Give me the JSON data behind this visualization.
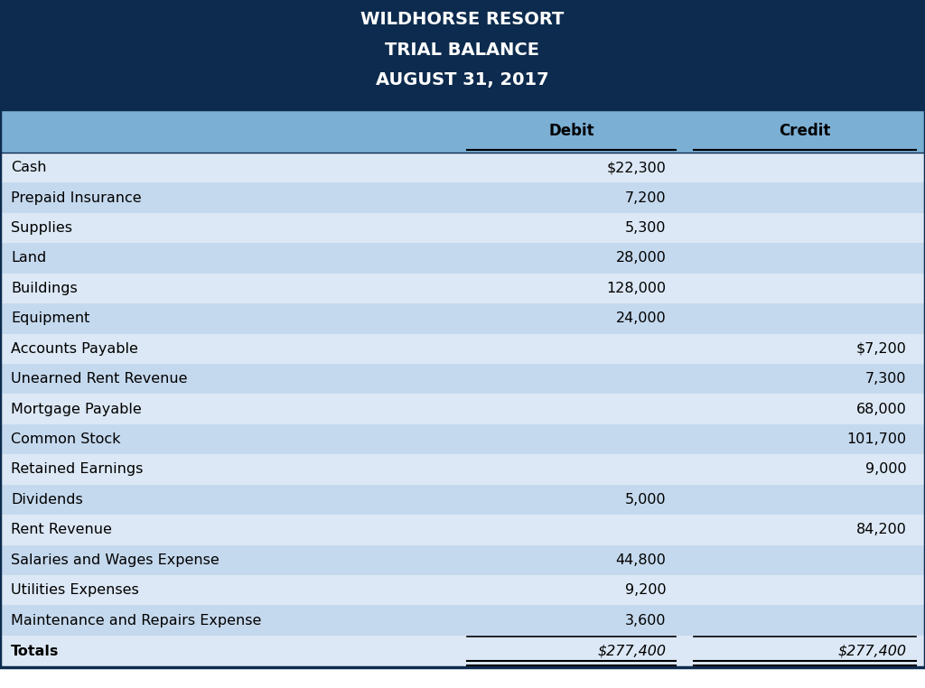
{
  "title_lines": [
    "WILDHORSE RESORT",
    "TRIAL BALANCE",
    "AUGUST 31, 2017"
  ],
  "header_bg": "#0d2b4e",
  "header_text_color": "#ffffff",
  "subheader_bg": "#7bafd4",
  "col_header_text": [
    "Debit",
    "Credit"
  ],
  "row_bg_light": "#dce8f5",
  "row_bg_dark": "#c5d9ee",
  "rows": [
    {
      "label": "Cash",
      "debit": "$22,300",
      "credit": ""
    },
    {
      "label": "Prepaid Insurance",
      "debit": "7,200",
      "credit": ""
    },
    {
      "label": "Supplies",
      "debit": "5,300",
      "credit": ""
    },
    {
      "label": "Land",
      "debit": "28,000",
      "credit": ""
    },
    {
      "label": "Buildings",
      "debit": "128,000",
      "credit": ""
    },
    {
      "label": "Equipment",
      "debit": "24,000",
      "credit": ""
    },
    {
      "label": "Accounts Payable",
      "debit": "",
      "credit": "$7,200"
    },
    {
      "label": "Unearned Rent Revenue",
      "debit": "",
      "credit": "7,300"
    },
    {
      "label": "Mortgage Payable",
      "debit": "",
      "credit": "68,000"
    },
    {
      "label": "Common Stock",
      "debit": "",
      "credit": "101,700"
    },
    {
      "label": "Retained Earnings",
      "debit": "",
      "credit": "9,000"
    },
    {
      "label": "Dividends",
      "debit": "5,000",
      "credit": ""
    },
    {
      "label": "Rent Revenue",
      "debit": "",
      "credit": "84,200"
    },
    {
      "label": "Salaries and Wages Expense",
      "debit": "44,800",
      "credit": ""
    },
    {
      "label": "Utilities Expenses",
      "debit": "9,200",
      "credit": ""
    },
    {
      "label": "Maintenance and Repairs Expense",
      "debit": "3,600",
      "credit": ""
    }
  ],
  "totals_label": "Totals",
  "totals_debit": "$277,400",
  "totals_credit": "$277,400",
  "border_color": "#0d2b4e",
  "divider_color": "#0d2b4e",
  "title_fontsize": 14,
  "header_fontsize": 12,
  "row_fontsize": 11.5,
  "totals_fontsize": 11.5,
  "col_split1": 0.495,
  "col_split2": 0.74
}
